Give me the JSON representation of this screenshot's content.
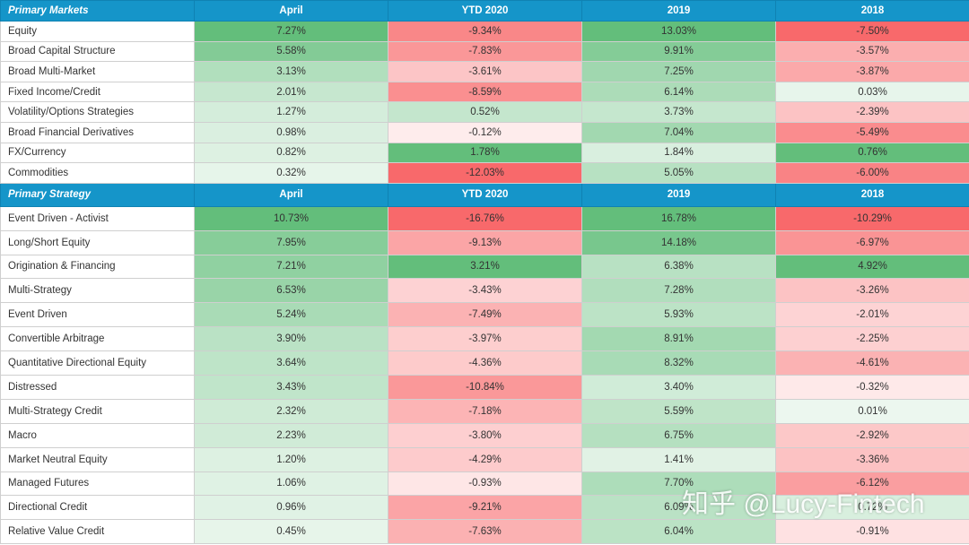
{
  "chart_data": {
    "type": "table",
    "colors": {
      "header_bg": "#1595c9",
      "positive_strong": "#63be7b",
      "negative_strong": "#f8696b",
      "neutral": "#ffffff"
    },
    "sections": [
      {
        "header": [
          "Primary Markets",
          "April",
          "YTD 2020",
          "2019",
          "2018"
        ],
        "rows": [
          {
            "label": "Equity",
            "values": [
              "7.27%",
              "-9.34%",
              "13.03%",
              "-7.50%"
            ]
          },
          {
            "label": "Broad Capital Structure",
            "values": [
              "5.58%",
              "-7.83%",
              "9.91%",
              "-3.57%"
            ]
          },
          {
            "label": "Broad Multi-Market",
            "values": [
              "3.13%",
              "-3.61%",
              "7.25%",
              "-3.87%"
            ]
          },
          {
            "label": "Fixed Income/Credit",
            "values": [
              "2.01%",
              "-8.59%",
              "6.14%",
              "0.03%"
            ]
          },
          {
            "label": "Volatility/Options Strategies",
            "values": [
              "1.27%",
              "0.52%",
              "3.73%",
              "-2.39%"
            ]
          },
          {
            "label": "Broad Financial Derivatives",
            "values": [
              "0.98%",
              "-0.12%",
              "7.04%",
              "-5.49%"
            ]
          },
          {
            "label": "FX/Currency",
            "values": [
              "0.82%",
              "1.78%",
              "1.84%",
              "0.76%"
            ]
          },
          {
            "label": "Commodities",
            "values": [
              "0.32%",
              "-12.03%",
              "5.05%",
              "-6.00%"
            ]
          }
        ]
      },
      {
        "header": [
          "Primary Strategy",
          "April",
          "YTD 2020",
          "2019",
          "2018"
        ],
        "rows": [
          {
            "label": "Event Driven - Activist",
            "values": [
              "10.73%",
              "-16.76%",
              "16.78%",
              "-10.29%"
            ]
          },
          {
            "label": "Long/Short Equity",
            "values": [
              "7.95%",
              "-9.13%",
              "14.18%",
              "-6.97%"
            ]
          },
          {
            "label": "Origination & Financing",
            "values": [
              "7.21%",
              "3.21%",
              "6.38%",
              "4.92%"
            ]
          },
          {
            "label": "Multi-Strategy",
            "values": [
              "6.53%",
              "-3.43%",
              "7.28%",
              "-3.26%"
            ]
          },
          {
            "label": "Event Driven",
            "values": [
              "5.24%",
              "-7.49%",
              "5.93%",
              "-2.01%"
            ]
          },
          {
            "label": "Convertible Arbitrage",
            "values": [
              "3.90%",
              "-3.97%",
              "8.91%",
              "-2.25%"
            ]
          },
          {
            "label": "Quantitative Directional Equity",
            "values": [
              "3.64%",
              "-4.36%",
              "8.32%",
              "-4.61%"
            ]
          },
          {
            "label": "Distressed",
            "values": [
              "3.43%",
              "-10.84%",
              "3.40%",
              "-0.32%"
            ]
          },
          {
            "label": "Multi-Strategy Credit",
            "values": [
              "2.32%",
              "-7.18%",
              "5.59%",
              "0.01%"
            ]
          },
          {
            "label": "Macro",
            "values": [
              "2.23%",
              "-3.80%",
              "6.75%",
              "-2.92%"
            ]
          },
          {
            "label": "Market Neutral Equity",
            "values": [
              "1.20%",
              "-4.29%",
              "1.41%",
              "-3.36%"
            ]
          },
          {
            "label": "Managed Futures",
            "values": [
              "1.06%",
              "-0.93%",
              "7.70%",
              "-6.12%"
            ]
          },
          {
            "label": "Directional Credit",
            "values": [
              "0.96%",
              "-9.21%",
              "6.09%",
              "0.72%"
            ]
          },
          {
            "label": "Relative Value Credit",
            "values": [
              "0.45%",
              "-7.63%",
              "6.04%",
              "-0.91%"
            ]
          }
        ]
      }
    ]
  },
  "watermark": "知乎 @Lucy-Fintech"
}
